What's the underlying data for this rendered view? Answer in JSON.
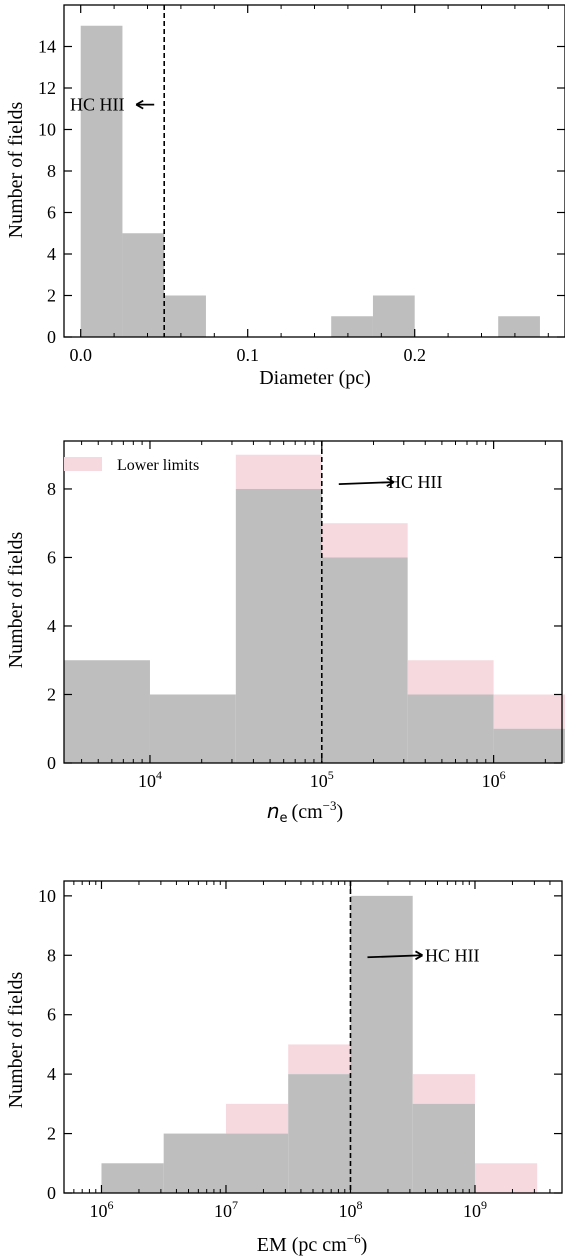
{
  "colors": {
    "bar": "#bebebe",
    "bar_lower_limit": "#f6d9df",
    "axis": "#000000"
  },
  "chart_data": [
    {
      "type": "bar",
      "subtype": "histogram",
      "xlabel": "Diameter (pc)",
      "ylabel": "Number of fields",
      "xscale": "linear",
      "xlim": [
        -0.01,
        0.29
      ],
      "ylim": [
        0,
        16
      ],
      "xticks": [
        0.0,
        0.1,
        0.2
      ],
      "xtick_labels": [
        "0.0",
        "0.1",
        "0.2"
      ],
      "yticks": [
        0,
        2,
        4,
        6,
        8,
        10,
        12,
        14
      ],
      "ytick_labels": [
        "0",
        "2",
        "4",
        "6",
        "8",
        "10",
        "12",
        "14"
      ],
      "bins": [
        {
          "x0": 0.0,
          "x1": 0.025,
          "count": 15
        },
        {
          "x0": 0.025,
          "x1": 0.05,
          "count": 5
        },
        {
          "x0": 0.05,
          "x1": 0.075,
          "count": 2
        },
        {
          "x0": 0.075,
          "x1": 0.1,
          "count": 0
        },
        {
          "x0": 0.1,
          "x1": 0.125,
          "count": 0
        },
        {
          "x0": 0.125,
          "x1": 0.15,
          "count": 0
        },
        {
          "x0": 0.15,
          "x1": 0.175,
          "count": 1
        },
        {
          "x0": 0.175,
          "x1": 0.2,
          "count": 2
        },
        {
          "x0": 0.2,
          "x1": 0.225,
          "count": 0
        },
        {
          "x0": 0.225,
          "x1": 0.25,
          "count": 0
        },
        {
          "x0": 0.25,
          "x1": 0.275,
          "count": 1
        }
      ],
      "threshold": {
        "x": 0.05,
        "style": "dashed"
      },
      "annotation": {
        "text": "HC HII",
        "arrow": "left",
        "y": 11.2
      },
      "legend": null
    },
    {
      "type": "bar",
      "subtype": "histogram",
      "xlabel_main": "n",
      "xlabel_sub": "e",
      "xlabel_unit": "(cm",
      "xlabel_exp": "−3",
      "xlabel_close": ")",
      "ylabel": "Number of fields",
      "xscale": "log",
      "xlim": [
        3160.0,
        2500000.0
      ],
      "ylim": [
        0,
        9.4
      ],
      "xticks": [
        10000.0,
        100000.0,
        1000000.0
      ],
      "xtick_bases": [
        "10",
        "10",
        "10"
      ],
      "xtick_exps": [
        "4",
        "5",
        "6"
      ],
      "yticks": [
        0,
        2,
        4,
        6,
        8
      ],
      "ytick_labels": [
        "0",
        "2",
        "4",
        "6",
        "8"
      ],
      "bins": [
        {
          "x0": 3160.0,
          "x1": 10000.0,
          "count": 3,
          "with_lower_limits": 3
        },
        {
          "x0": 10000.0,
          "x1": 31600.0,
          "count": 2,
          "with_lower_limits": 2
        },
        {
          "x0": 31600.0,
          "x1": 100000.0,
          "count": 8,
          "with_lower_limits": 9
        },
        {
          "x0": 100000.0,
          "x1": 316000.0,
          "count": 6,
          "with_lower_limits": 7
        },
        {
          "x0": 316000.0,
          "x1": 1000000.0,
          "count": 2,
          "with_lower_limits": 3
        },
        {
          "x0": 1000000.0,
          "x1": 3160000.0,
          "count": 1,
          "with_lower_limits": 2
        }
      ],
      "threshold": {
        "x": 100000.0,
        "style": "dashed"
      },
      "annotation": {
        "text": "HC HII",
        "arrow": "right",
        "y": 8.2
      },
      "legend": {
        "label": "Lower limits",
        "placement": "top-left"
      }
    },
    {
      "type": "bar",
      "subtype": "histogram",
      "xlabel_main": "EM (pc cm",
      "xlabel_exp": "−6",
      "xlabel_close": ")",
      "ylabel": "Number of fields",
      "xscale": "log",
      "xlim": [
        500000.0,
        5000000000.0
      ],
      "ylim": [
        0,
        10.5
      ],
      "xticks": [
        1000000.0,
        10000000.0,
        100000000.0,
        1000000000.0
      ],
      "xtick_bases": [
        "10",
        "10",
        "10",
        "10"
      ],
      "xtick_exps": [
        "6",
        "7",
        "8",
        "9"
      ],
      "yticks": [
        0,
        2,
        4,
        6,
        8,
        10
      ],
      "ytick_labels": [
        "0",
        "2",
        "4",
        "6",
        "8",
        "10"
      ],
      "bins": [
        {
          "x0": 1000000.0,
          "x1": 3160000.0,
          "count": 1,
          "with_lower_limits": 1
        },
        {
          "x0": 3160000.0,
          "x1": 10000000.0,
          "count": 2,
          "with_lower_limits": 2
        },
        {
          "x0": 10000000.0,
          "x1": 31600000.0,
          "count": 2,
          "with_lower_limits": 3
        },
        {
          "x0": 31600000.0,
          "x1": 100000000.0,
          "count": 4,
          "with_lower_limits": 5
        },
        {
          "x0": 100000000.0,
          "x1": 316000000.0,
          "count": 10,
          "with_lower_limits": 10
        },
        {
          "x0": 316000000.0,
          "x1": 1000000000.0,
          "count": 3,
          "with_lower_limits": 4
        },
        {
          "x0": 1000000000.0,
          "x1": 3160000000.0,
          "count": 0,
          "with_lower_limits": 1
        }
      ],
      "threshold": {
        "x": 100000000.0,
        "style": "dashed"
      },
      "annotation": {
        "text": "HC HII",
        "arrow": "right",
        "y": 8.0
      },
      "legend": null
    }
  ]
}
